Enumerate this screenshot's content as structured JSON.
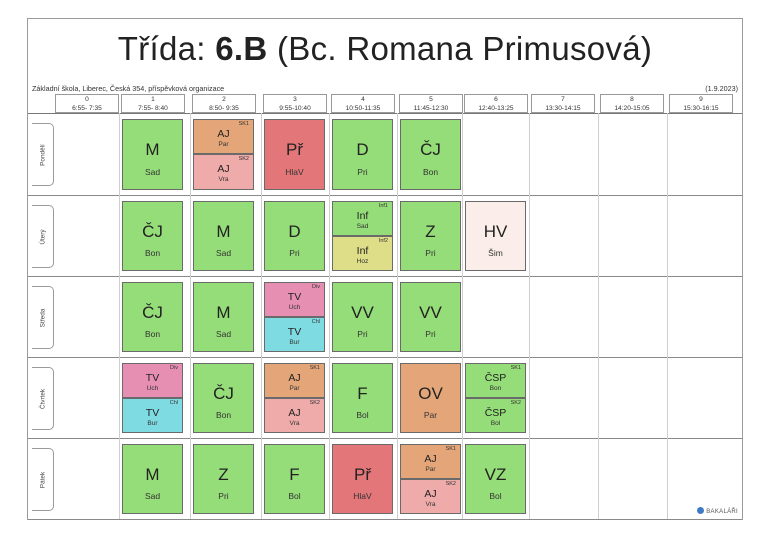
{
  "title": {
    "prefix": "Třída: ",
    "class": "6.B",
    "teacher": " (Bc. Romana Primusová)"
  },
  "school": "Základní škola, Liberec, Česká 354, příspěvková organizace",
  "date": "(1.9.2023)",
  "periods": [
    {
      "n": "0",
      "t": "6:55- 7:35"
    },
    {
      "n": "1",
      "t": "7:55- 8:40"
    },
    {
      "n": "2",
      "t": "8:50- 9:35"
    },
    {
      "n": "3",
      "t": "9:55-10:40"
    },
    {
      "n": "4",
      "t": "10:50-11:35"
    },
    {
      "n": "5",
      "t": "11:45-12:30"
    },
    {
      "n": "6",
      "t": "12:40-13:25"
    },
    {
      "n": "7",
      "t": "13:30-14:15"
    },
    {
      "n": "8",
      "t": "14:20-15:05"
    },
    {
      "n": "9",
      "t": "15:30-16:15"
    }
  ],
  "days": [
    "Pondělí",
    "Úterý",
    "Středa",
    "Čtvrtek",
    "Pátek"
  ],
  "lessons": [
    {
      "d": 0,
      "p": 1,
      "s": "M",
      "t": "Sad",
      "c": "g"
    },
    {
      "d": 0,
      "p": 2,
      "split": [
        {
          "g": "SK1",
          "s": "AJ",
          "t": "Par",
          "c": "o"
        },
        {
          "g": "SK2",
          "s": "AJ",
          "t": "Vra",
          "c": "p"
        }
      ]
    },
    {
      "d": 0,
      "p": 3,
      "s": "Př",
      "t": "HlaV",
      "c": "r"
    },
    {
      "d": 0,
      "p": 4,
      "s": "D",
      "t": "Pri",
      "c": "g"
    },
    {
      "d": 0,
      "p": 5,
      "s": "ČJ",
      "t": "Bon",
      "c": "g"
    },
    {
      "d": 1,
      "p": 1,
      "s": "ČJ",
      "t": "Bon",
      "c": "g"
    },
    {
      "d": 1,
      "p": 2,
      "s": "M",
      "t": "Sad",
      "c": "g"
    },
    {
      "d": 1,
      "p": 3,
      "s": "D",
      "t": "Pri",
      "c": "g"
    },
    {
      "d": 1,
      "p": 4,
      "split": [
        {
          "g": "Inf1",
          "s": "Inf",
          "t": "Sad",
          "c": "g"
        },
        {
          "g": "Inf2",
          "s": "Inf",
          "t": "Hoz",
          "c": "y"
        }
      ]
    },
    {
      "d": 1,
      "p": 5,
      "s": "Z",
      "t": "Pri",
      "c": "g"
    },
    {
      "d": 1,
      "p": 6,
      "s": "HV",
      "t": "Šim",
      "c": "w"
    },
    {
      "d": 2,
      "p": 1,
      "s": "ČJ",
      "t": "Bon",
      "c": "g"
    },
    {
      "d": 2,
      "p": 2,
      "s": "M",
      "t": "Sad",
      "c": "g"
    },
    {
      "d": 2,
      "p": 3,
      "split": [
        {
          "g": "Div",
          "s": "TV",
          "t": "Uch",
          "c": "k"
        },
        {
          "g": "Chl",
          "s": "TV",
          "t": "Bur",
          "c": "c"
        }
      ]
    },
    {
      "d": 2,
      "p": 4,
      "s": "VV",
      "t": "Pri",
      "c": "g"
    },
    {
      "d": 2,
      "p": 5,
      "s": "VV",
      "t": "Pri",
      "c": "g"
    },
    {
      "d": 3,
      "p": 1,
      "split": [
        {
          "g": "Div",
          "s": "TV",
          "t": "Uch",
          "c": "k"
        },
        {
          "g": "Chl",
          "s": "TV",
          "t": "Bur",
          "c": "c"
        }
      ]
    },
    {
      "d": 3,
      "p": 2,
      "s": "ČJ",
      "t": "Bon",
      "c": "g"
    },
    {
      "d": 3,
      "p": 3,
      "split": [
        {
          "g": "SK1",
          "s": "AJ",
          "t": "Par",
          "c": "o"
        },
        {
          "g": "SK2",
          "s": "AJ",
          "t": "Vra",
          "c": "p"
        }
      ]
    },
    {
      "d": 3,
      "p": 4,
      "s": "F",
      "t": "Bol",
      "c": "g"
    },
    {
      "d": 3,
      "p": 5,
      "s": "OV",
      "t": "Par",
      "c": "o"
    },
    {
      "d": 3,
      "p": 6,
      "split": [
        {
          "g": "SK1",
          "s": "ČSP",
          "t": "Bon",
          "c": "g"
        },
        {
          "g": "SK2",
          "s": "ČSP",
          "t": "Bol",
          "c": "g"
        }
      ]
    },
    {
      "d": 4,
      "p": 1,
      "s": "M",
      "t": "Sad",
      "c": "g"
    },
    {
      "d": 4,
      "p": 2,
      "s": "Z",
      "t": "Pri",
      "c": "g"
    },
    {
      "d": 4,
      "p": 3,
      "s": "F",
      "t": "Bol",
      "c": "g"
    },
    {
      "d": 4,
      "p": 4,
      "s": "Př",
      "t": "HlaV",
      "c": "r"
    },
    {
      "d": 4,
      "p": 5,
      "split": [
        {
          "g": "SK1",
          "s": "AJ",
          "t": "Par",
          "c": "o"
        },
        {
          "g": "SK2",
          "s": "AJ",
          "t": "Vra",
          "c": "p"
        }
      ]
    },
    {
      "d": 4,
      "p": 6,
      "s": "VZ",
      "t": "Bol",
      "c": "g"
    }
  ],
  "colors": {
    "g": "#95dd78",
    "r": "#e27679",
    "o": "#e4a679",
    "p": "#efaaaa",
    "y": "#dede88",
    "k": "#e68fb3",
    "c": "#7fdbe2",
    "w": "#fbeeea"
  },
  "logo": "BAKALÁŘI",
  "logo_icon": "bakalari-logo-icon"
}
